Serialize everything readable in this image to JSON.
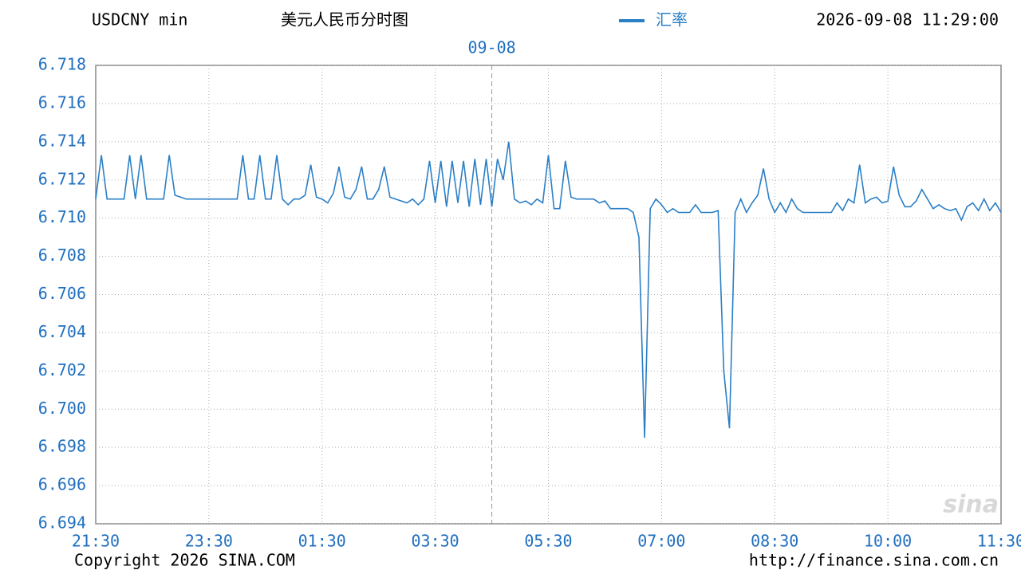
{
  "chart_data": {
    "type": "line",
    "title": "USDCNY min",
    "subtitle": "美元人民币分时图",
    "timestamp": "2026-09-08 11:29:00",
    "date_marker": "09-08",
    "watermark": "sina",
    "footer_left": "Copyright 2026 SINA.COM",
    "footer_right": "http://finance.sina.com.cn",
    "grid": true,
    "categories": [
      "21:30",
      null,
      null,
      null,
      null,
      null,
      null,
      null,
      null,
      null,
      null,
      null,
      null,
      null,
      null,
      null,
      null,
      null,
      null,
      null,
      "23:30",
      null,
      null,
      null,
      null,
      null,
      null,
      null,
      null,
      null,
      null,
      null,
      null,
      null,
      null,
      null,
      null,
      null,
      null,
      null,
      "01:30",
      null,
      null,
      null,
      null,
      null,
      null,
      null,
      null,
      null,
      null,
      null,
      null,
      null,
      null,
      null,
      null,
      null,
      null,
      null,
      "03:30",
      null,
      null,
      null,
      null,
      null,
      null,
      null,
      null,
      null,
      null,
      null,
      null,
      null,
      null,
      null,
      null,
      null,
      null,
      null,
      "05:30",
      null,
      null,
      null,
      null,
      null,
      null,
      null,
      null,
      null,
      null,
      null,
      null,
      null,
      null,
      null,
      null,
      null,
      null,
      null,
      "07:00",
      null,
      null,
      null,
      null,
      null,
      null,
      null,
      null,
      null,
      null,
      null,
      null,
      null,
      null,
      null,
      null,
      null,
      null,
      null,
      "08:30",
      null,
      null,
      null,
      null,
      null,
      null,
      null,
      null,
      null,
      null,
      null,
      null,
      null,
      null,
      null,
      null,
      null,
      null,
      null,
      "10:00",
      null,
      null,
      null,
      null,
      null,
      null,
      null,
      null,
      null,
      null,
      null,
      null,
      null,
      null,
      null,
      null,
      null,
      null,
      null,
      "11:30"
    ],
    "series": [
      {
        "name": "汇率",
        "color": "#2a7fc6",
        "values": [
          6.711,
          6.7133,
          6.711,
          6.711,
          6.711,
          6.711,
          6.7133,
          6.711,
          6.7133,
          6.711,
          6.711,
          6.711,
          6.711,
          6.7133,
          6.7112,
          6.7111,
          6.711,
          6.711,
          6.711,
          6.711,
          6.711,
          6.711,
          6.711,
          6.711,
          6.711,
          6.711,
          6.7133,
          6.711,
          6.711,
          6.7133,
          6.711,
          6.711,
          6.7133,
          6.711,
          6.7107,
          6.711,
          6.711,
          6.7112,
          6.7128,
          6.7111,
          6.711,
          6.7108,
          6.7113,
          6.7127,
          6.7111,
          6.711,
          6.7115,
          6.7127,
          6.711,
          6.711,
          6.7115,
          6.7127,
          6.7111,
          6.711,
          6.7109,
          6.7108,
          6.711,
          6.7107,
          6.711,
          6.713,
          6.7108,
          6.713,
          6.7106,
          6.713,
          6.7108,
          6.713,
          6.7106,
          6.7131,
          6.7107,
          6.7131,
          6.7106,
          6.7131,
          6.712,
          6.714,
          6.711,
          6.7108,
          6.7109,
          6.7107,
          6.711,
          6.7108,
          6.7133,
          6.7105,
          6.7105,
          6.713,
          6.7111,
          6.711,
          6.711,
          6.711,
          6.711,
          6.7108,
          6.7109,
          6.7105,
          6.7105,
          6.7105,
          6.7105,
          6.7103,
          6.709,
          6.6985,
          6.7105,
          6.711,
          6.7107,
          6.7103,
          6.7105,
          6.7103,
          6.7103,
          6.7103,
          6.7107,
          6.7103,
          6.7103,
          6.7103,
          6.7104,
          6.702,
          6.699,
          6.7103,
          6.711,
          6.7103,
          6.7108,
          6.7112,
          6.7126,
          6.711,
          6.7103,
          6.7108,
          6.7103,
          6.711,
          6.7105,
          6.7103,
          6.7103,
          6.7103,
          6.7103,
          6.7103,
          6.7103,
          6.7108,
          6.7104,
          6.711,
          6.7108,
          6.7128,
          6.7108,
          6.711,
          6.7111,
          6.7108,
          6.7109,
          6.7127,
          6.7112,
          6.7106,
          6.7106,
          6.7109,
          6.7115,
          6.711,
          6.7105,
          6.7107,
          6.7105,
          6.7104,
          6.7105,
          6.7099,
          6.7106,
          6.7108,
          6.7104,
          6.711,
          6.7104,
          6.7108,
          6.7103
        ]
      }
    ],
    "ylim": [
      6.694,
      6.718
    ],
    "yticks": [
      6.694,
      6.696,
      6.698,
      {
        "value": 6.7,
        "label": "6.700"
      },
      6.702,
      6.704,
      6.706,
      6.708,
      {
        "value": 6.71,
        "label": "6.710"
      },
      6.712,
      6.714,
      6.716,
      6.718
    ]
  }
}
